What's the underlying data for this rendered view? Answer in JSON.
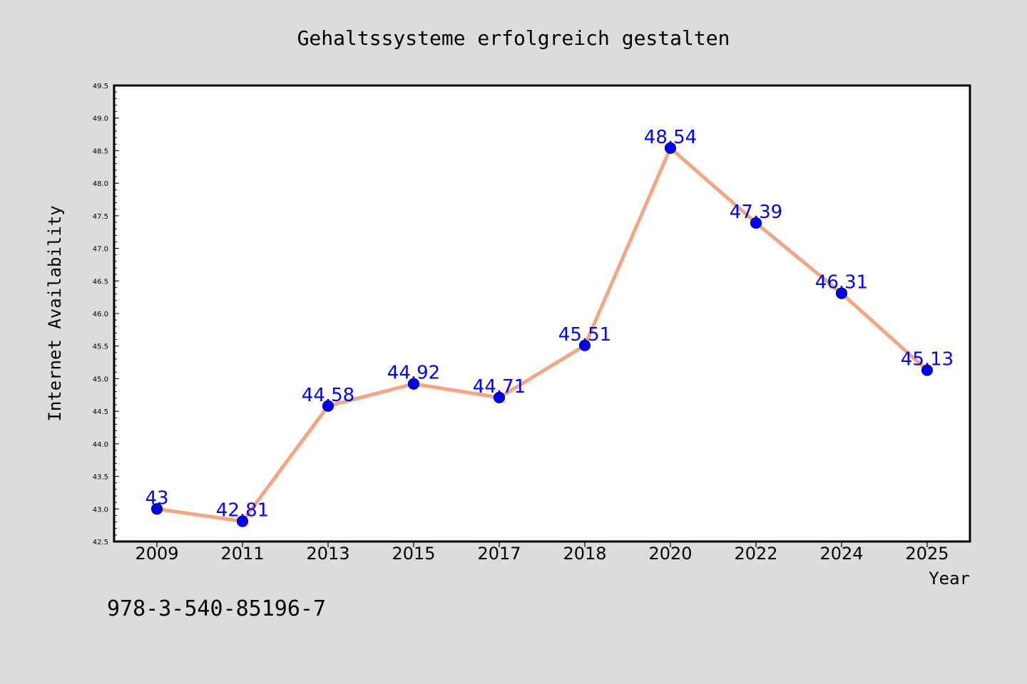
{
  "chart_data": {
    "type": "line",
    "title": "Gehaltssysteme erfolgreich gestalten",
    "xlabel": "Year",
    "ylabel": "Internet Availability",
    "categories": [
      "2009",
      "2011",
      "2013",
      "2015",
      "2017",
      "2018",
      "2020",
      "2022",
      "2024",
      "2025"
    ],
    "series": [
      {
        "values": [
          43,
          42.81,
          44.58,
          44.92,
          44.71,
          45.51,
          48.54,
          47.39,
          46.31,
          45.13
        ],
        "data_labels": [
          "43",
          "42.81",
          "44.58",
          "44.92",
          "44.71",
          "45.51",
          "48.54",
          "47.39",
          "46.31",
          "45.13"
        ]
      }
    ],
    "ylim": [
      42.5,
      49.5
    ],
    "y_ticks": [
      "42.5",
      "43.0",
      "43.5",
      "44.0",
      "44.5",
      "45.0",
      "45.5",
      "46.0",
      "46.5",
      "47.0",
      "47.5",
      "48.0",
      "48.5",
      "49.0",
      "49.5"
    ],
    "grid": false,
    "legend": "none",
    "colors": {
      "line": "#f4a582",
      "marker": "#0000ff",
      "marker_edge": "#000080",
      "label": "#0000ff",
      "background": "#dcdcdc",
      "plot_bg": "#ffffff"
    }
  },
  "footer_text": "978-3-540-85196-7"
}
